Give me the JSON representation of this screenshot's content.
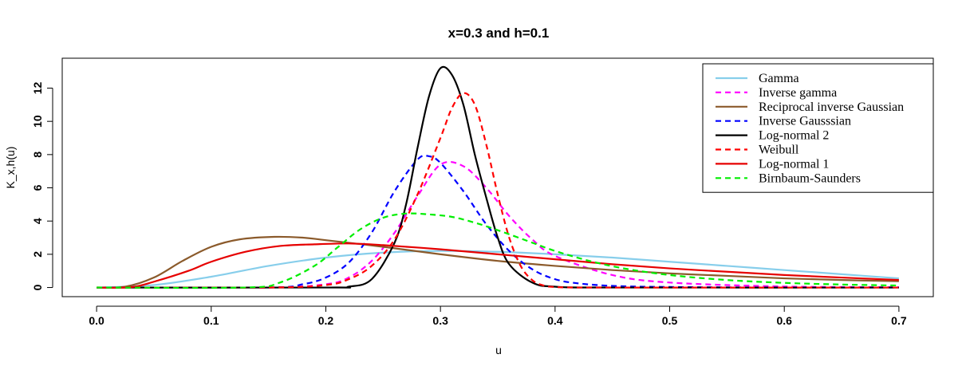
{
  "chart_data": {
    "type": "line",
    "title": "x=0.3 and h=0.1",
    "xlabel": "u",
    "ylabel": "K_x,h(u)",
    "xlim": [
      -0.03,
      0.73
    ],
    "ylim": [
      -0.55,
      13.8
    ],
    "xticks": [
      "0.0",
      "0.1",
      "0.2",
      "0.3",
      "0.4",
      "0.5",
      "0.6",
      "0.7"
    ],
    "xtick_values": [
      0.0,
      0.1,
      0.2,
      0.3,
      0.4,
      0.5,
      0.6,
      0.7
    ],
    "yticks": [
      "0",
      "2",
      "4",
      "6",
      "8",
      "10",
      "12"
    ],
    "ytick_values": [
      0,
      2,
      4,
      6,
      8,
      10,
      12
    ],
    "grid": false,
    "legend_position": "top-right",
    "series": [
      {
        "name": "Gamma",
        "color": "#87ceeb",
        "dash": "solid",
        "x": [
          0.0,
          0.05,
          0.1,
          0.15,
          0.2,
          0.25,
          0.3,
          0.35,
          0.4,
          0.45,
          0.5,
          0.55,
          0.6,
          0.65,
          0.7
        ],
        "y": [
          0.0,
          0.15,
          0.65,
          1.3,
          1.8,
          2.1,
          2.2,
          2.15,
          2.0,
          1.8,
          1.55,
          1.3,
          1.05,
          0.8,
          0.55
        ]
      },
      {
        "name": "Inverse gamma",
        "color": "#ff00ff",
        "dash": "dashed",
        "x": [
          0.0,
          0.15,
          0.2,
          0.22,
          0.24,
          0.26,
          0.28,
          0.3,
          0.32,
          0.34,
          0.36,
          0.38,
          0.4,
          0.45,
          0.5,
          0.6,
          0.7
        ],
        "y": [
          0.0,
          0.0,
          0.2,
          0.6,
          1.6,
          3.3,
          5.5,
          7.4,
          7.3,
          6.0,
          4.3,
          2.9,
          1.9,
          0.75,
          0.3,
          0.06,
          0.02
        ]
      },
      {
        "name": "Reciprocal inverse Gaussian",
        "color": "#8b5a2b",
        "dash": "solid",
        "x": [
          0.0,
          0.025,
          0.05,
          0.075,
          0.1,
          0.125,
          0.155,
          0.18,
          0.2,
          0.25,
          0.3,
          0.35,
          0.4,
          0.45,
          0.5,
          0.55,
          0.6,
          0.65,
          0.7
        ],
        "y": [
          0.0,
          0.05,
          0.6,
          1.6,
          2.45,
          2.9,
          3.05,
          3.0,
          2.85,
          2.45,
          2.0,
          1.6,
          1.3,
          1.05,
          0.85,
          0.7,
          0.55,
          0.45,
          0.38
        ]
      },
      {
        "name": "Inverse Gausssian",
        "color": "#0000ff",
        "dash": "dashed",
        "x": [
          0.0,
          0.15,
          0.18,
          0.2,
          0.22,
          0.24,
          0.26,
          0.28,
          0.29,
          0.3,
          0.32,
          0.34,
          0.36,
          0.38,
          0.4,
          0.42,
          0.45,
          0.5,
          0.6,
          0.7
        ],
        "y": [
          0.0,
          0.0,
          0.2,
          0.6,
          1.5,
          3.3,
          5.8,
          7.7,
          7.9,
          7.5,
          5.8,
          3.8,
          2.2,
          1.1,
          0.5,
          0.25,
          0.1,
          0.03,
          0.0,
          0.0
        ]
      },
      {
        "name": "Log-normal 2",
        "color": "#000000",
        "dash": "solid",
        "x": [
          0.0,
          0.2,
          0.22,
          0.24,
          0.26,
          0.27,
          0.28,
          0.29,
          0.3,
          0.31,
          0.32,
          0.33,
          0.34,
          0.35,
          0.36,
          0.38,
          0.4,
          0.45,
          0.7
        ],
        "y": [
          0.0,
          0.0,
          0.05,
          0.5,
          2.7,
          5.0,
          8.4,
          11.5,
          13.2,
          12.8,
          11.0,
          8.0,
          5.4,
          3.0,
          1.4,
          0.3,
          0.05,
          0.0,
          0.0
        ]
      },
      {
        "name": "Weibull",
        "color": "#ff0000",
        "dash": "dashed",
        "x": [
          0.0,
          0.15,
          0.2,
          0.22,
          0.24,
          0.26,
          0.28,
          0.3,
          0.31,
          0.32,
          0.33,
          0.34,
          0.35,
          0.36,
          0.37,
          0.38,
          0.39,
          0.4,
          0.42,
          0.5,
          0.7
        ],
        "y": [
          0.0,
          0.0,
          0.15,
          0.5,
          1.3,
          2.9,
          5.6,
          9.0,
          10.8,
          11.7,
          11.0,
          8.6,
          5.6,
          3.0,
          1.3,
          0.45,
          0.12,
          0.03,
          0.0,
          0.0,
          0.0
        ]
      },
      {
        "name": "Log-normal 1",
        "color": "#e60000",
        "dash": "solid",
        "x": [
          0.0,
          0.03,
          0.05,
          0.08,
          0.1,
          0.13,
          0.16,
          0.19,
          0.22,
          0.25,
          0.3,
          0.35,
          0.4,
          0.45,
          0.5,
          0.55,
          0.6,
          0.65,
          0.7
        ],
        "y": [
          0.0,
          0.02,
          0.35,
          1.0,
          1.55,
          2.15,
          2.5,
          2.6,
          2.65,
          2.55,
          2.3,
          2.0,
          1.7,
          1.4,
          1.15,
          0.95,
          0.75,
          0.6,
          0.45
        ]
      },
      {
        "name": "Birnbaum-Saunders",
        "color": "#00ee00",
        "dash": "dashed",
        "x": [
          0.0,
          0.13,
          0.16,
          0.19,
          0.21,
          0.23,
          0.25,
          0.27,
          0.29,
          0.31,
          0.33,
          0.35,
          0.38,
          0.4,
          0.43,
          0.46,
          0.5,
          0.55,
          0.6,
          0.65,
          0.7
        ],
        "y": [
          0.0,
          0.0,
          0.3,
          1.3,
          2.4,
          3.5,
          4.2,
          4.45,
          4.4,
          4.25,
          3.9,
          3.45,
          2.7,
          2.2,
          1.6,
          1.15,
          0.75,
          0.45,
          0.28,
          0.18,
          0.12
        ]
      }
    ]
  }
}
